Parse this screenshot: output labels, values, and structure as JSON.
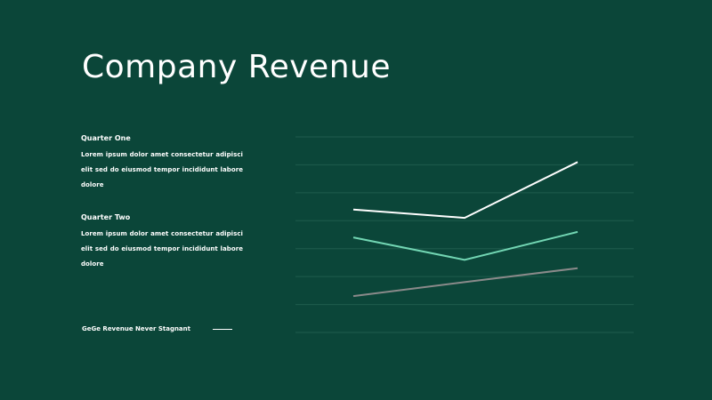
{
  "slide": {
    "title": "Company Revenue",
    "sections": [
      {
        "heading": "Quarter One",
        "body": "Lorem ipsum dolor amet consectetur adipisci elit sed do eiusmod tempor incididunt labore dolore"
      },
      {
        "heading": "Quarter Two",
        "body": "Lorem ipsum dolor amet consectetur adipisci elit sed do eiusmod tempor incididunt labore dolore"
      }
    ],
    "tagline": "GeGe Revenue  Never  Stagnant"
  },
  "colors": {
    "background": "#0b4639",
    "text": "#ffffff",
    "gridline": "#1f5c4d",
    "series_white": "#ffffff",
    "series_mint": "#72d6b3",
    "series_gray": "#8a8a8a"
  },
  "chart_data": {
    "type": "line",
    "title": "",
    "xlabel": "",
    "ylabel": "",
    "ylim": [
      0,
      7
    ],
    "grid": true,
    "gridlines": 8,
    "axes_visible": false,
    "legend": "none",
    "x": [
      1,
      2,
      3
    ],
    "series": [
      {
        "values": [
          4.4,
          4.1,
          6.1
        ],
        "color": "#ffffff"
      },
      {
        "values": [
          3.4,
          2.6,
          3.6
        ],
        "color": "#72d6b3"
      },
      {
        "values": [
          1.3,
          1.8,
          2.3
        ],
        "color": "#8a8a8a"
      }
    ]
  }
}
